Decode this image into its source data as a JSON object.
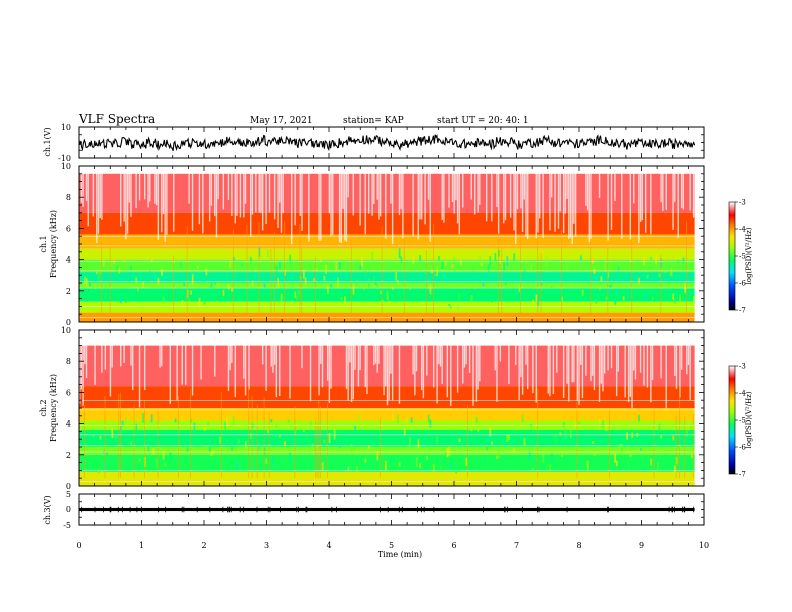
{
  "header": {
    "title": "VLF Spectra",
    "date": "May 17, 2021",
    "station": "station= KAP",
    "start": "start  UT =   20: 40: 1"
  },
  "chart_data": [
    {
      "type": "line",
      "panel": "ch1-waveform",
      "ylabel": "ch.1(V)",
      "ylim": [
        -10,
        10
      ],
      "yticks": [
        "10",
        "-10"
      ],
      "xlim": [
        0,
        10
      ],
      "data_end_min": 9.85,
      "series": [
        {
          "color": "#000000",
          "description_of_signal": "noisy waveform fluctuating between about -5 and 5 V"
        }
      ]
    },
    {
      "type": "heatmap",
      "panel": "ch1-spectrogram",
      "ylabel_line1": "ch.1",
      "ylabel_line2": "Frequency  (kHz)",
      "ylim": [
        0,
        10
      ],
      "yticks": [
        "0",
        "2",
        "4",
        "6",
        "8",
        "10"
      ],
      "xlim": [
        0,
        10
      ],
      "data_end_min": 9.85,
      "colorbar": {
        "label": "log(PSD)(V²/Hz)",
        "ticks": [
          "-3",
          "-4",
          "-5",
          "-6",
          "-7"
        ],
        "range": [
          -7,
          -3
        ]
      },
      "bands": [
        {
          "f_khz": [
            9.5,
            10
          ],
          "level": -3.0
        },
        {
          "f_khz": [
            7,
            9.5
          ],
          "level": -3.3
        },
        {
          "f_khz": [
            5.6,
            7
          ],
          "level": -3.7
        },
        {
          "f_khz": [
            4.7,
            5.6
          ],
          "level": -4.1
        },
        {
          "f_khz": [
            4.0,
            4.7
          ],
          "level": -4.5
        },
        {
          "f_khz": [
            3.2,
            4.0
          ],
          "level": -4.9
        },
        {
          "f_khz": [
            2.5,
            3.2
          ],
          "level": -5.3
        },
        {
          "f_khz": [
            2.2,
            2.5
          ],
          "level": -4.8
        },
        {
          "f_khz": [
            1.3,
            2.2
          ],
          "level": -5.2
        },
        {
          "f_khz": [
            0.6,
            1.3
          ],
          "level": -4.6
        },
        {
          "f_khz": [
            0,
            0.6
          ],
          "level": -4.0
        }
      ]
    },
    {
      "type": "heatmap",
      "panel": "ch2-spectrogram",
      "ylabel_line1": "ch.2",
      "ylabel_line2": "Frequency  (kHz)",
      "ylim": [
        0,
        10
      ],
      "yticks": [
        "0",
        "2",
        "4",
        "6",
        "8",
        "10"
      ],
      "xlim": [
        0,
        10
      ],
      "data_end_min": 9.85,
      "colorbar": {
        "label": "log(PSD)(V²/Hz)",
        "ticks": [
          "-3",
          "-4",
          "-5",
          "-6",
          "-7"
        ],
        "range": [
          -7,
          -3
        ]
      },
      "bands": [
        {
          "f_khz": [
            9.0,
            10
          ],
          "level": -3.0
        },
        {
          "f_khz": [
            6.4,
            9.0
          ],
          "level": -3.3
        },
        {
          "f_khz": [
            5.0,
            6.4
          ],
          "level": -3.7
        },
        {
          "f_khz": [
            4.2,
            5.0
          ],
          "level": -4.2
        },
        {
          "f_khz": [
            3.6,
            4.2
          ],
          "level": -4.7
        },
        {
          "f_khz": [
            2.5,
            3.6
          ],
          "level": -5.2
        },
        {
          "f_khz": [
            2.0,
            2.5
          ],
          "level": -4.8
        },
        {
          "f_khz": [
            0.9,
            2.0
          ],
          "level": -5.1
        },
        {
          "f_khz": [
            0,
            0.9
          ],
          "level": -4.4
        }
      ]
    },
    {
      "type": "line",
      "panel": "ch3-waveform",
      "ylabel": "ch.3(V)",
      "ylim": [
        -5,
        5
      ],
      "yticks": [
        "5",
        "0",
        "-5"
      ],
      "xlim": [
        0,
        10
      ],
      "data_end_min": 9.85,
      "series": [
        {
          "color": "#000000",
          "description_of_signal": "thick flat trace near 0 V"
        }
      ],
      "xlabel": "Time  (min)",
      "xticks": [
        "0",
        "1",
        "2",
        "3",
        "4",
        "5",
        "6",
        "7",
        "8",
        "9",
        "10"
      ]
    }
  ],
  "colors": {
    "colormap": [
      "#000000",
      "#0000a0",
      "#0040ff",
      "#00e0ff",
      "#00ff60",
      "#a0ff00",
      "#ffe000",
      "#ff8000",
      "#ff0000",
      "#ffffff"
    ]
  }
}
